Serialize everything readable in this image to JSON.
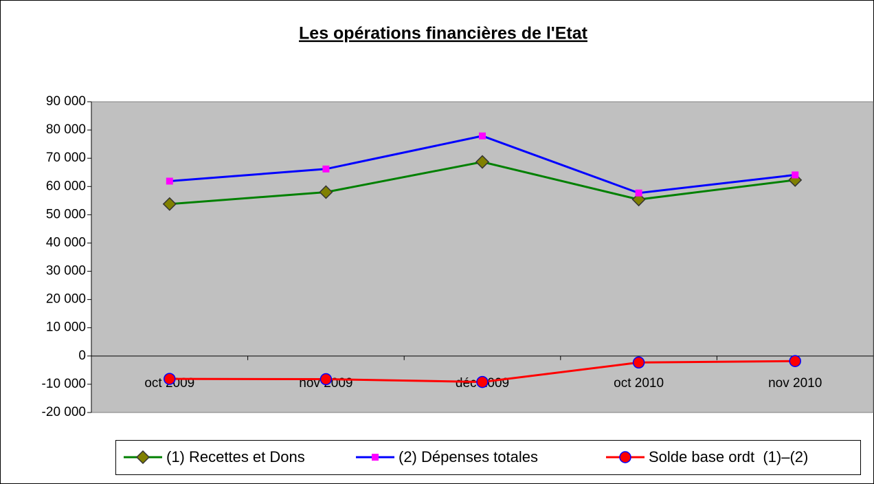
{
  "chart_data": {
    "type": "line",
    "title": "Les opérations financières de l'Etat",
    "categories": [
      "oct 2009",
      "nov 2009",
      "déc 2009",
      "oct 2010",
      "nov 2010"
    ],
    "series": [
      {
        "name": "(1) Recettes et Dons",
        "color": "#008000",
        "marker": "diamond",
        "marker_color": "#808000",
        "values": [
          53800,
          58000,
          68700,
          55400,
          62300
        ]
      },
      {
        "name": "(2) Dépenses totales",
        "color": "#0000ff",
        "marker": "square",
        "marker_color": "#ff00ff",
        "values": [
          61900,
          66200,
          77900,
          57700,
          64100
        ]
      },
      {
        "name": "Solde base ordt  (1)–(2)",
        "color": "#ff0000",
        "marker": "circle",
        "marker_color": "#ff0000",
        "values": [
          -8100,
          -8200,
          -9200,
          -2300,
          -1800
        ]
      }
    ],
    "ylim": [
      -20000,
      90000
    ],
    "yticks": [
      {
        "value": -20000,
        "label": "-20 000"
      },
      {
        "value": -10000,
        "label": "-10 000"
      },
      0,
      {
        "value": 10000,
        "label": "10 000"
      },
      {
        "value": 20000,
        "label": "20 000"
      },
      {
        "value": 30000,
        "label": "30 000"
      },
      {
        "value": 40000,
        "label": "40 000"
      },
      {
        "value": 50000,
        "label": "50 000"
      },
      {
        "value": 60000,
        "label": "60 000"
      },
      {
        "value": 70000,
        "label": "70 000"
      },
      {
        "value": 80000,
        "label": "80 000"
      },
      {
        "value": 90000,
        "label": "90 000"
      }
    ],
    "plot_background": "#c0c0c0",
    "legend": "bottom"
  }
}
